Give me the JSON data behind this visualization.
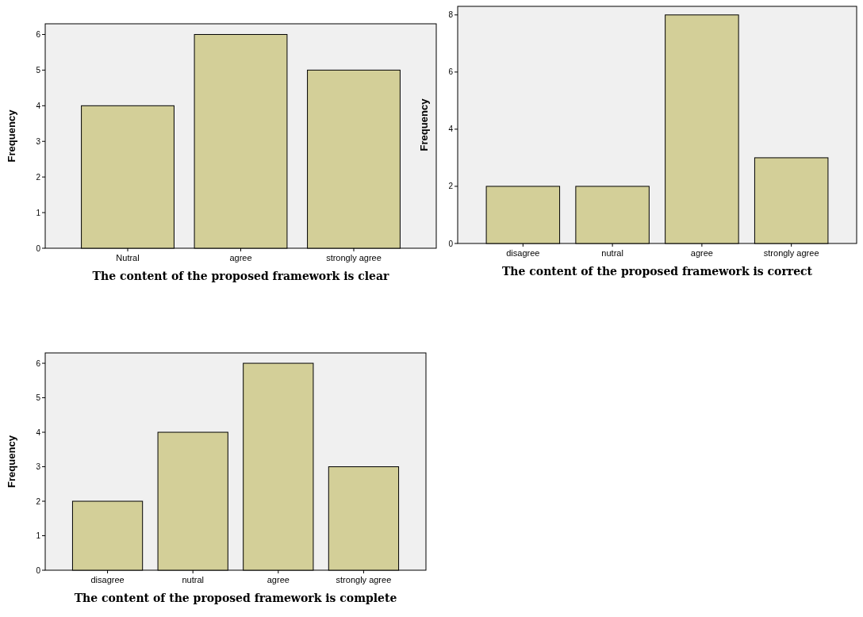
{
  "chart_data": [
    {
      "type": "bar",
      "xlabel": "The content of the proposed framework is clear",
      "ylabel": "Frequency",
      "categories": [
        "Nutral",
        "agree",
        "strongly agree"
      ],
      "values": [
        4,
        6,
        5
      ],
      "color": "#d3cf98",
      "ylim": [
        0,
        6.3
      ],
      "yticks": [
        0,
        1,
        2,
        3,
        4,
        5,
        6
      ],
      "grid": false
    },
    {
      "type": "bar",
      "xlabel": "The content of the proposed framework is correct",
      "ylabel": "Frequency",
      "categories": [
        "disagree",
        "nutral",
        "agree",
        "strongly agree"
      ],
      "values": [
        2,
        2,
        8,
        3
      ],
      "color": "#d3cf98",
      "ylim": [
        0,
        8.3
      ],
      "yticks": [
        0,
        2,
        4,
        6,
        8
      ],
      "grid": false
    },
    {
      "type": "bar",
      "xlabel": "The content of the proposed framework is complete",
      "ylabel": "Frequency",
      "categories": [
        "disagree",
        "nutral",
        "agree",
        "strongly agree"
      ],
      "values": [
        2,
        4,
        6,
        3
      ],
      "color": "#d3cf98",
      "ylim": [
        0,
        6.3
      ],
      "yticks": [
        0,
        1,
        2,
        3,
        4,
        5,
        6
      ],
      "grid": false
    }
  ]
}
